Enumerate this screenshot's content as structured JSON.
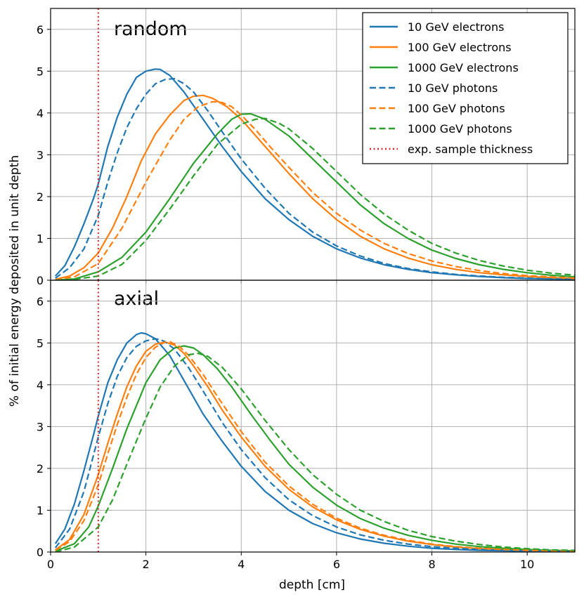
{
  "chart_data": {
    "type": "line",
    "xlabel": "depth [cm]",
    "ylabel": "% of initial energy deposited in unit depth",
    "xlim": [
      0,
      11
    ],
    "ylim": [
      0,
      6.5
    ],
    "xticks": [
      0,
      2,
      4,
      6,
      8,
      10
    ],
    "yticks": [
      0,
      1,
      2,
      3,
      4,
      5,
      6
    ],
    "grid": true,
    "legend_position": "top-right (upper panel)",
    "marker_line": {
      "x": 1.0,
      "label": "exp. sample thickness",
      "color": "#d62728",
      "style": "dotted"
    },
    "legend": [
      {
        "label": "10 GeV electrons",
        "color": "#1f77b4",
        "style": "solid"
      },
      {
        "label": "100 GeV electrons",
        "color": "#ff7f0e",
        "style": "solid"
      },
      {
        "label": "1000 GeV electrons",
        "color": "#2ca02c",
        "style": "solid"
      },
      {
        "label": "10 GeV photons",
        "color": "#1f77b4",
        "style": "dashed"
      },
      {
        "label": "100 GeV photons",
        "color": "#ff7f0e",
        "style": "dashed"
      },
      {
        "label": "1000 GeV photons",
        "color": "#2ca02c",
        "style": "dashed"
      },
      {
        "label": "exp. sample thickness",
        "color": "#d62728",
        "style": "dotted"
      }
    ],
    "panels": [
      {
        "title": "random",
        "series": [
          {
            "name": "10 GeV electrons",
            "color": "#1f77b4",
            "style": "solid",
            "x": [
              0.1,
              0.3,
              0.5,
              0.7,
              0.9,
              1.0,
              1.2,
              1.4,
              1.6,
              1.8,
              2.0,
              2.2,
              2.3,
              2.5,
              2.8,
              3.2,
              3.6,
              4.0,
              4.5,
              5.0,
              5.5,
              6.0,
              6.5,
              7.0,
              7.5,
              8.0,
              8.5,
              9.0,
              9.5,
              10.0,
              10.5,
              11.0
            ],
            "y": [
              0.1,
              0.35,
              0.8,
              1.35,
              1.95,
              2.3,
              3.2,
              3.9,
              4.45,
              4.85,
              5.0,
              5.05,
              5.04,
              4.9,
              4.5,
              3.85,
              3.2,
              2.6,
              1.95,
              1.45,
              1.05,
              0.75,
              0.53,
              0.37,
              0.26,
              0.18,
              0.13,
              0.09,
              0.06,
              0.04,
              0.03,
              0.02
            ]
          },
          {
            "name": "100 GeV electrons",
            "color": "#ff7f0e",
            "style": "solid",
            "x": [
              0.1,
              0.4,
              0.7,
              1.0,
              1.3,
              1.6,
              1.9,
              2.2,
              2.5,
              2.8,
              3.0,
              3.2,
              3.4,
              3.7,
              4.0,
              4.5,
              5.0,
              5.5,
              6.0,
              6.5,
              7.0,
              7.5,
              8.0,
              8.5,
              9.0,
              9.5,
              10.0,
              10.5,
              11.0
            ],
            "y": [
              0.02,
              0.1,
              0.3,
              0.65,
              1.25,
              2.0,
              2.85,
              3.5,
              3.95,
              4.3,
              4.4,
              4.42,
              4.35,
              4.15,
              3.85,
              3.2,
              2.55,
              1.95,
              1.45,
              1.05,
              0.75,
              0.53,
              0.37,
              0.26,
              0.18,
              0.13,
              0.09,
              0.06,
              0.04
            ]
          },
          {
            "name": "1000 GeV electrons",
            "color": "#2ca02c",
            "style": "solid",
            "x": [
              0.1,
              0.5,
              1.0,
              1.5,
              2.0,
              2.5,
              3.0,
              3.5,
              3.8,
              4.0,
              4.2,
              4.5,
              5.0,
              5.5,
              6.0,
              6.5,
              7.0,
              7.5,
              8.0,
              8.5,
              9.0,
              9.5,
              10.0,
              10.5,
              11.0
            ],
            "y": [
              0.0,
              0.03,
              0.2,
              0.55,
              1.15,
              1.95,
              2.8,
              3.5,
              3.85,
              3.97,
              3.98,
              3.85,
              3.45,
              2.9,
              2.35,
              1.8,
              1.35,
              1.0,
              0.72,
              0.52,
              0.37,
              0.26,
              0.18,
              0.12,
              0.08
            ]
          },
          {
            "name": "10 GeV photons",
            "color": "#1f77b4",
            "style": "dashed",
            "x": [
              0.1,
              0.4,
              0.7,
              1.0,
              1.2,
              1.4,
              1.6,
              1.8,
              2.0,
              2.2,
              2.4,
              2.6,
              2.8,
              3.0,
              3.3,
              3.6,
              4.0,
              4.5,
              5.0,
              5.5,
              6.0,
              6.5,
              7.0,
              7.5,
              8.0,
              8.5,
              9.0,
              9.5,
              10.0,
              10.5,
              11.0
            ],
            "y": [
              0.05,
              0.3,
              0.75,
              1.55,
              2.35,
              3.05,
              3.65,
              4.1,
              4.45,
              4.7,
              4.8,
              4.82,
              4.7,
              4.5,
              4.05,
              3.55,
              2.9,
              2.2,
              1.6,
              1.15,
              0.82,
              0.58,
              0.4,
              0.28,
              0.2,
              0.14,
              0.1,
              0.07,
              0.05,
              0.03,
              0.02
            ]
          },
          {
            "name": "100 GeV photons",
            "color": "#ff7f0e",
            "style": "dashed",
            "x": [
              0.1,
              0.5,
              1.0,
              1.5,
              2.0,
              2.5,
              2.8,
              3.1,
              3.4,
              3.6,
              3.8,
              4.0,
              4.3,
              4.6,
              5.0,
              5.5,
              6.0,
              6.5,
              7.0,
              7.5,
              8.0,
              8.5,
              9.0,
              9.5,
              10.0,
              10.5,
              11.0
            ],
            "y": [
              0.01,
              0.08,
              0.4,
              1.25,
              2.35,
              3.35,
              3.85,
              4.15,
              4.27,
              4.25,
              4.15,
              3.95,
              3.6,
              3.2,
              2.7,
              2.1,
              1.6,
              1.2,
              0.88,
              0.64,
              0.46,
              0.33,
              0.23,
              0.16,
              0.11,
              0.08,
              0.05
            ]
          },
          {
            "name": "1000 GeV photons",
            "color": "#2ca02c",
            "style": "dashed",
            "x": [
              0.1,
              0.5,
              1.0,
              1.5,
              2.0,
              2.5,
              3.0,
              3.5,
              4.0,
              4.3,
              4.5,
              4.8,
              5.0,
              5.5,
              6.0,
              6.5,
              7.0,
              7.5,
              8.0,
              8.5,
              9.0,
              9.5,
              10.0,
              10.5,
              11.0
            ],
            "y": [
              0.0,
              0.02,
              0.1,
              0.38,
              0.95,
              1.7,
              2.5,
              3.25,
              3.73,
              3.85,
              3.87,
              3.75,
              3.62,
              3.15,
              2.6,
              2.05,
              1.58,
              1.2,
              0.88,
              0.65,
              0.47,
              0.34,
              0.24,
              0.17,
              0.12
            ]
          }
        ]
      },
      {
        "title": "axial",
        "series": [
          {
            "name": "10 GeV electrons",
            "color": "#1f77b4",
            "style": "solid",
            "x": [
              0.1,
              0.3,
              0.5,
              0.7,
              0.9,
              1.0,
              1.2,
              1.4,
              1.6,
              1.8,
              1.9,
              2.0,
              2.2,
              2.5,
              2.8,
              3.2,
              3.6,
              4.0,
              4.5,
              5.0,
              5.5,
              6.0,
              6.5,
              7.0,
              7.5,
              8.0,
              8.5,
              9.0,
              9.5,
              10.0,
              10.5,
              11.0
            ],
            "y": [
              0.2,
              0.55,
              1.15,
              1.95,
              2.8,
              3.25,
              4.05,
              4.6,
              5.0,
              5.2,
              5.24,
              5.22,
              5.1,
              4.7,
              4.1,
              3.3,
              2.65,
              2.05,
              1.45,
              1.0,
              0.68,
              0.46,
              0.31,
              0.21,
              0.14,
              0.09,
              0.06,
              0.04,
              0.03,
              0.02,
              0.01,
              0.01
            ]
          },
          {
            "name": "100 GeV electrons",
            "color": "#ff7f0e",
            "style": "solid",
            "x": [
              0.1,
              0.4,
              0.7,
              1.0,
              1.2,
              1.4,
              1.6,
              1.8,
              2.0,
              2.2,
              2.4,
              2.6,
              2.8,
              3.0,
              3.3,
              3.6,
              4.0,
              4.5,
              5.0,
              5.5,
              6.0,
              6.5,
              7.0,
              7.5,
              8.0,
              8.5,
              9.0,
              9.5,
              10.0,
              10.5,
              11.0
            ],
            "y": [
              0.05,
              0.3,
              0.9,
              1.85,
              2.6,
              3.3,
              3.95,
              4.45,
              4.8,
              4.97,
              5.02,
              4.95,
              4.75,
              4.45,
              3.95,
              3.4,
              2.75,
              2.05,
              1.5,
              1.08,
              0.77,
              0.54,
              0.38,
              0.26,
              0.18,
              0.12,
              0.08,
              0.06,
              0.04,
              0.03,
              0.02
            ]
          },
          {
            "name": "1000 GeV electrons",
            "color": "#2ca02c",
            "style": "solid",
            "x": [
              0.1,
              0.5,
              0.8,
              1.0,
              1.3,
              1.6,
              2.0,
              2.3,
              2.6,
              2.8,
              3.0,
              3.2,
              3.5,
              3.8,
              4.2,
              4.6,
              5.0,
              5.5,
              6.0,
              6.5,
              7.0,
              7.5,
              8.0,
              8.5,
              9.0,
              9.5,
              10.0,
              10.5,
              11.0
            ],
            "y": [
              0.02,
              0.2,
              0.6,
              1.1,
              2.0,
              2.95,
              4.05,
              4.6,
              4.88,
              4.93,
              4.88,
              4.72,
              4.38,
              3.95,
              3.3,
              2.68,
              2.1,
              1.55,
              1.12,
              0.8,
              0.57,
              0.4,
              0.28,
              0.19,
              0.13,
              0.09,
              0.06,
              0.04,
              0.03
            ]
          },
          {
            "name": "10 GeV photons",
            "color": "#1f77b4",
            "style": "dashed",
            "x": [
              0.1,
              0.4,
              0.7,
              1.0,
              1.2,
              1.4,
              1.6,
              1.8,
              2.0,
              2.2,
              2.3,
              2.4,
              2.6,
              2.9,
              3.2,
              3.6,
              4.0,
              4.5,
              5.0,
              5.5,
              6.0,
              6.5,
              7.0,
              7.5,
              8.0,
              8.5,
              9.0,
              9.5,
              10.0,
              10.5,
              11.0
            ],
            "y": [
              0.1,
              0.55,
              1.45,
              2.75,
              3.55,
              4.2,
              4.65,
              4.92,
              5.05,
              5.1,
              5.08,
              5.03,
              4.85,
              4.4,
              3.85,
              3.1,
              2.45,
              1.78,
              1.25,
              0.87,
              0.6,
              0.41,
              0.28,
              0.19,
              0.13,
              0.09,
              0.06,
              0.04,
              0.03,
              0.02,
              0.01
            ]
          },
          {
            "name": "100 GeV photons",
            "color": "#ff7f0e",
            "style": "dashed",
            "x": [
              0.1,
              0.4,
              0.7,
              1.0,
              1.2,
              1.4,
              1.6,
              1.8,
              2.0,
              2.2,
              2.4,
              2.5,
              2.7,
              2.9,
              3.2,
              3.5,
              4.0,
              4.5,
              5.0,
              5.5,
              6.0,
              6.5,
              7.0,
              7.5,
              8.0,
              8.5,
              9.0,
              9.5,
              10.0,
              10.5,
              11.0
            ],
            "y": [
              0.04,
              0.25,
              0.75,
              1.6,
              2.35,
              3.05,
              3.7,
              4.25,
              4.65,
              4.9,
              5.02,
              5.03,
              4.92,
              4.7,
              4.25,
              3.72,
              2.88,
              2.15,
              1.58,
              1.14,
              0.81,
              0.57,
              0.4,
              0.28,
              0.19,
              0.13,
              0.09,
              0.06,
              0.04,
              0.03,
              0.02
            ]
          },
          {
            "name": "1000 GeV photons",
            "color": "#2ca02c",
            "style": "dashed",
            "x": [
              0.1,
              0.5,
              1.0,
              1.3,
              1.6,
              2.0,
              2.3,
              2.6,
              2.9,
              3.1,
              3.3,
              3.6,
              4.0,
              4.5,
              5.0,
              5.5,
              6.0,
              6.5,
              7.0,
              7.5,
              8.0,
              8.5,
              9.0,
              9.5,
              10.0,
              10.5,
              11.0
            ],
            "y": [
              0.0,
              0.12,
              0.6,
              1.25,
              2.1,
              3.2,
              3.95,
              4.45,
              4.72,
              4.75,
              4.68,
              4.42,
              3.9,
              3.15,
              2.45,
              1.85,
              1.38,
              1.0,
              0.73,
              0.52,
              0.37,
              0.26,
              0.18,
              0.12,
              0.08,
              0.05,
              0.04
            ]
          }
        ]
      }
    ]
  }
}
